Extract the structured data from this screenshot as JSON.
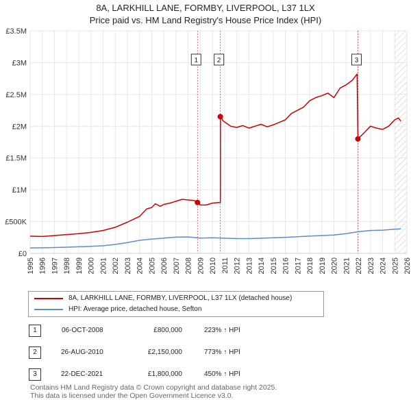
{
  "chart_data": {
    "type": "line",
    "title": "8A, LARKHILL LANE, FORMBY, LIVERPOOL, L37 1LX",
    "subtitle": "Price paid vs. HM Land Registry's House Price Index (HPI)",
    "xlabel": "",
    "ylabel": "",
    "xlim": [
      1995,
      2026
    ],
    "ylim": [
      0,
      3500000
    ],
    "x_ticks": [
      "1995",
      "1996",
      "1997",
      "1998",
      "1999",
      "2000",
      "2001",
      "2002",
      "2003",
      "2004",
      "2005",
      "2006",
      "2007",
      "2008",
      "2009",
      "2010",
      "2011",
      "2012",
      "2013",
      "2014",
      "2015",
      "2016",
      "2017",
      "2018",
      "2019",
      "2020",
      "2021",
      "2022",
      "2023",
      "2024",
      "2025",
      "2026"
    ],
    "y_ticks": [
      {
        "value": 0,
        "label": "£0"
      },
      {
        "value": 500000,
        "label": "£500K"
      },
      {
        "value": 1000000,
        "label": "£1M"
      },
      {
        "value": 1500000,
        "label": "£1.5M"
      },
      {
        "value": 2000000,
        "label": "£2M"
      },
      {
        "value": 2500000,
        "label": "£2.5M"
      },
      {
        "value": 3000000,
        "label": "£3M"
      },
      {
        "value": 3500000,
        "label": "£3.5M"
      }
    ],
    "grid": true,
    "hatched_region_from": 2025.0,
    "series": [
      {
        "name": "8A, LARKHILL LANE, FORMBY, LIVERPOOL, L37 1LX (detached house)",
        "color": "#cc0000",
        "points": [
          [
            1995.0,
            270000
          ],
          [
            1996.0,
            265000
          ],
          [
            1997.0,
            280000
          ],
          [
            1998.0,
            295000
          ],
          [
            1999.0,
            310000
          ],
          [
            2000.0,
            330000
          ],
          [
            2001.0,
            360000
          ],
          [
            2002.0,
            410000
          ],
          [
            2003.0,
            490000
          ],
          [
            2004.0,
            580000
          ],
          [
            2004.6,
            700000
          ],
          [
            2005.0,
            720000
          ],
          [
            2005.3,
            780000
          ],
          [
            2005.7,
            740000
          ],
          [
            2006.0,
            770000
          ],
          [
            2006.5,
            790000
          ],
          [
            2007.0,
            820000
          ],
          [
            2007.5,
            850000
          ],
          [
            2008.0,
            840000
          ],
          [
            2008.5,
            830000
          ],
          [
            2008.77,
            800000
          ],
          [
            2009.0,
            760000
          ],
          [
            2009.5,
            760000
          ],
          [
            2010.0,
            790000
          ],
          [
            2010.5,
            800000
          ],
          [
            2010.65,
            800000
          ],
          [
            2010.66,
            2150000
          ],
          [
            2010.9,
            2080000
          ],
          [
            2011.5,
            2000000
          ],
          [
            2012.0,
            1980000
          ],
          [
            2012.5,
            2010000
          ],
          [
            2013.0,
            1970000
          ],
          [
            2013.5,
            2000000
          ],
          [
            2014.0,
            2030000
          ],
          [
            2014.5,
            1990000
          ],
          [
            2015.0,
            2020000
          ],
          [
            2015.5,
            2060000
          ],
          [
            2016.0,
            2100000
          ],
          [
            2016.5,
            2200000
          ],
          [
            2017.0,
            2250000
          ],
          [
            2017.5,
            2300000
          ],
          [
            2018.0,
            2400000
          ],
          [
            2018.5,
            2450000
          ],
          [
            2019.0,
            2480000
          ],
          [
            2019.5,
            2520000
          ],
          [
            2020.0,
            2450000
          ],
          [
            2020.5,
            2600000
          ],
          [
            2021.0,
            2650000
          ],
          [
            2021.5,
            2720000
          ],
          [
            2021.9,
            2820000
          ],
          [
            2021.97,
            1800000
          ],
          [
            2022.5,
            1900000
          ],
          [
            2023.0,
            2000000
          ],
          [
            2023.5,
            1970000
          ],
          [
            2024.0,
            1950000
          ],
          [
            2024.5,
            2000000
          ],
          [
            2025.0,
            2100000
          ],
          [
            2025.3,
            2130000
          ],
          [
            2025.5,
            2080000
          ]
        ]
      },
      {
        "name": "HPI: Average price, detached house, Sefton",
        "color": "#5b8ec9",
        "points": [
          [
            1995.0,
            85000
          ],
          [
            1996.0,
            87000
          ],
          [
            1997.0,
            92000
          ],
          [
            1998.0,
            97000
          ],
          [
            1999.0,
            103000
          ],
          [
            2000.0,
            110000
          ],
          [
            2001.0,
            120000
          ],
          [
            2002.0,
            140000
          ],
          [
            2003.0,
            170000
          ],
          [
            2004.0,
            205000
          ],
          [
            2005.0,
            225000
          ],
          [
            2006.0,
            240000
          ],
          [
            2007.0,
            255000
          ],
          [
            2008.0,
            258000
          ],
          [
            2009.0,
            240000
          ],
          [
            2010.0,
            245000
          ],
          [
            2011.0,
            238000
          ],
          [
            2012.0,
            233000
          ],
          [
            2013.0,
            232000
          ],
          [
            2014.0,
            238000
          ],
          [
            2015.0,
            245000
          ],
          [
            2016.0,
            252000
          ],
          [
            2017.0,
            262000
          ],
          [
            2018.0,
            272000
          ],
          [
            2019.0,
            280000
          ],
          [
            2020.0,
            288000
          ],
          [
            2021.0,
            310000
          ],
          [
            2022.0,
            340000
          ],
          [
            2023.0,
            360000
          ],
          [
            2024.0,
            365000
          ],
          [
            2025.0,
            380000
          ],
          [
            2025.5,
            385000
          ]
        ]
      }
    ],
    "sales": [
      {
        "id": "1",
        "x": 2008.77,
        "price": 800000
      },
      {
        "id": "2",
        "x": 2010.65,
        "price": 2150000
      },
      {
        "id": "3",
        "x": 2021.97,
        "price": 1800000
      }
    ]
  },
  "legend": {
    "items": [
      {
        "label": "8A, LARKHILL LANE, FORMBY, LIVERPOOL, L37 1LX (detached house)",
        "color": "#cc0000"
      },
      {
        "label": "HPI: Average price, detached house, Sefton",
        "color": "#5b8ec9"
      }
    ]
  },
  "transactions": [
    {
      "num": "1",
      "date": "06-OCT-2008",
      "price": "£800,000",
      "hpi": "223% ↑ HPI"
    },
    {
      "num": "2",
      "date": "26-AUG-2010",
      "price": "£2,150,000",
      "hpi": "773% ↑ HPI"
    },
    {
      "num": "3",
      "date": "22-DEC-2021",
      "price": "£1,800,000",
      "hpi": "450% ↑ HPI"
    }
  ],
  "footer": {
    "line1": "Contains HM Land Registry data © Crown copyright and database right 2025.",
    "line2": "This data is licensed under the Open Government Licence v3.0."
  }
}
